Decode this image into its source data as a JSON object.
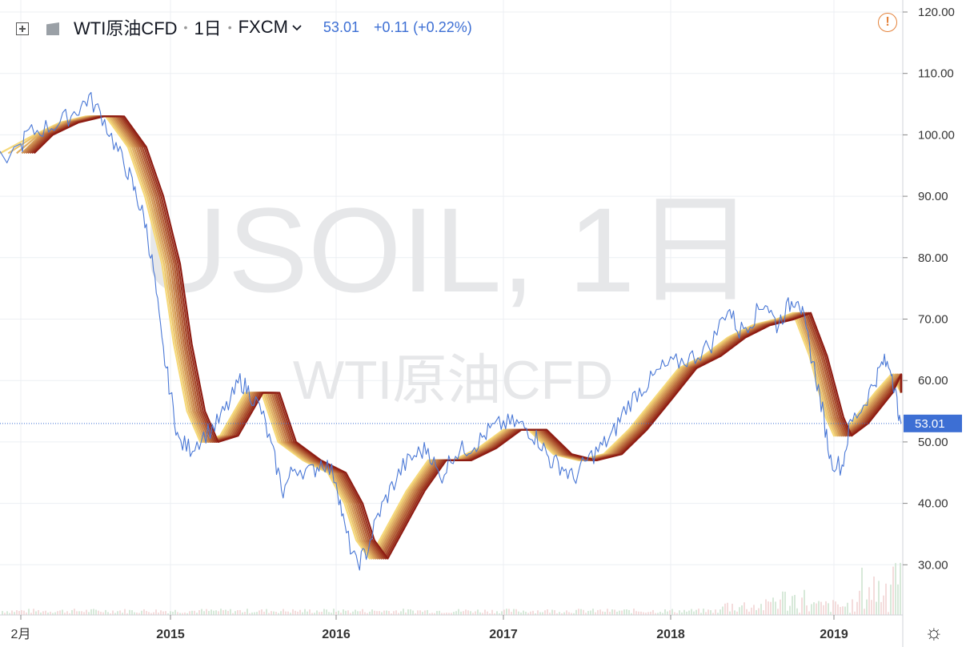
{
  "header": {
    "symbol": "WTI原油CFD",
    "timeframe": "1日",
    "exchange": "FXCM",
    "price": "53.01",
    "change": "+0.11 (+0.22%)"
  },
  "watermark": {
    "line1": "USOIL, 1日",
    "line2": "WTI原油CFD"
  },
  "colors": {
    "price_line": "#4a78d6",
    "last_price_tag": "#3d6fd4",
    "ribbon_fast": "#f6d97a",
    "ribbon_slow": "#8e1c12",
    "grid": "#eceff3",
    "alert": "#e4823a"
  },
  "icons": [
    "plus-square-icon",
    "flag-icon",
    "chevron-down-icon",
    "alert-icon",
    "gear-icon"
  ],
  "chart_data": {
    "type": "line",
    "x_axis_labels": [
      "2月",
      "2015",
      "2016",
      "2017",
      "2018",
      "2019"
    ],
    "y_axis_labels": [
      "120.00",
      "110.00",
      "100.00",
      "90.00",
      "80.00",
      "70.00",
      "60.00",
      "50.00",
      "40.00",
      "30.00"
    ],
    "ylim": [
      22,
      120
    ],
    "xlim": [
      2014.09,
      2019.42
    ],
    "last_price": 53.01,
    "last_price_label": "53.01",
    "grid": true,
    "series": [
      {
        "x": [
          2014.09,
          2014.15,
          2014.25,
          2014.35,
          2014.45,
          2014.52,
          2014.6,
          2014.68,
          2014.75,
          2014.8,
          2014.85,
          2014.9,
          2014.95,
          2015.0,
          2015.05,
          2015.12,
          2015.2,
          2015.28,
          2015.35,
          2015.42,
          2015.48,
          2015.55,
          2015.62,
          2015.68,
          2015.75,
          2015.85,
          2015.92,
          2016.0,
          2016.05,
          2016.12,
          2016.18,
          2016.25,
          2016.32,
          2016.4,
          2016.48,
          2016.55,
          2016.62,
          2016.7,
          2016.78,
          2016.85,
          2016.92,
          2017.0,
          2017.08,
          2017.15,
          2017.22,
          2017.28,
          2017.35,
          2017.42,
          2017.5,
          2017.58,
          2017.65,
          2017.72,
          2017.8,
          2017.88,
          2017.95,
          2018.05,
          2018.15,
          2018.25,
          2018.35,
          2018.42,
          2018.5,
          2018.58,
          2018.65,
          2018.72,
          2018.78,
          2018.82,
          2018.88,
          2018.93,
          2018.98,
          2019.05,
          2019.1,
          2019.18,
          2019.25,
          2019.3,
          2019.35,
          2019.38,
          2019.41
        ],
        "values": [
          96,
          100,
          101,
          102,
          104,
          106,
          103,
          98,
          94,
          90,
          86,
          78,
          66,
          58,
          50,
          49,
          51,
          53,
          56,
          60,
          58,
          55,
          48,
          42,
          46,
          45,
          47,
          44,
          36,
          30,
          32,
          38,
          42,
          46,
          48,
          49,
          44,
          48,
          49,
          50,
          52,
          53,
          53,
          52,
          50,
          47,
          46,
          44,
          47,
          49,
          51,
          55,
          58,
          60,
          62,
          63,
          64,
          66,
          72,
          68,
          70,
          73,
          69,
          72,
          74,
          69,
          62,
          55,
          47,
          46,
          53,
          56,
          60,
          63,
          62,
          57,
          53.01
        ]
      }
    ],
    "ribbon": {
      "count": 10,
      "x": [
        2014.09,
        2014.2,
        2014.35,
        2014.5,
        2014.62,
        2014.75,
        2014.85,
        2014.95,
        2015.02,
        2015.1,
        2015.18,
        2015.3,
        2015.45,
        2015.55,
        2015.65,
        2015.8,
        2015.95,
        2016.05,
        2016.12,
        2016.2,
        2016.3,
        2016.42,
        2016.55,
        2016.7,
        2016.85,
        2017.0,
        2017.15,
        2017.3,
        2017.45,
        2017.6,
        2017.75,
        2017.9,
        2018.05,
        2018.2,
        2018.35,
        2018.5,
        2018.65,
        2018.75,
        2018.85,
        2018.95,
        2019.0,
        2019.1,
        2019.25,
        2019.35,
        2019.41
      ],
      "values": [
        97,
        100,
        102,
        103,
        103,
        98,
        90,
        79,
        66,
        55,
        50,
        51,
        58,
        58,
        50,
        47,
        45,
        40,
        34,
        31,
        36,
        42,
        47,
        47,
        49,
        52,
        52,
        48,
        47,
        48,
        52,
        57,
        62,
        64,
        67,
        69,
        70,
        71,
        64,
        54,
        51,
        53,
        58,
        61,
        58
      ]
    }
  }
}
